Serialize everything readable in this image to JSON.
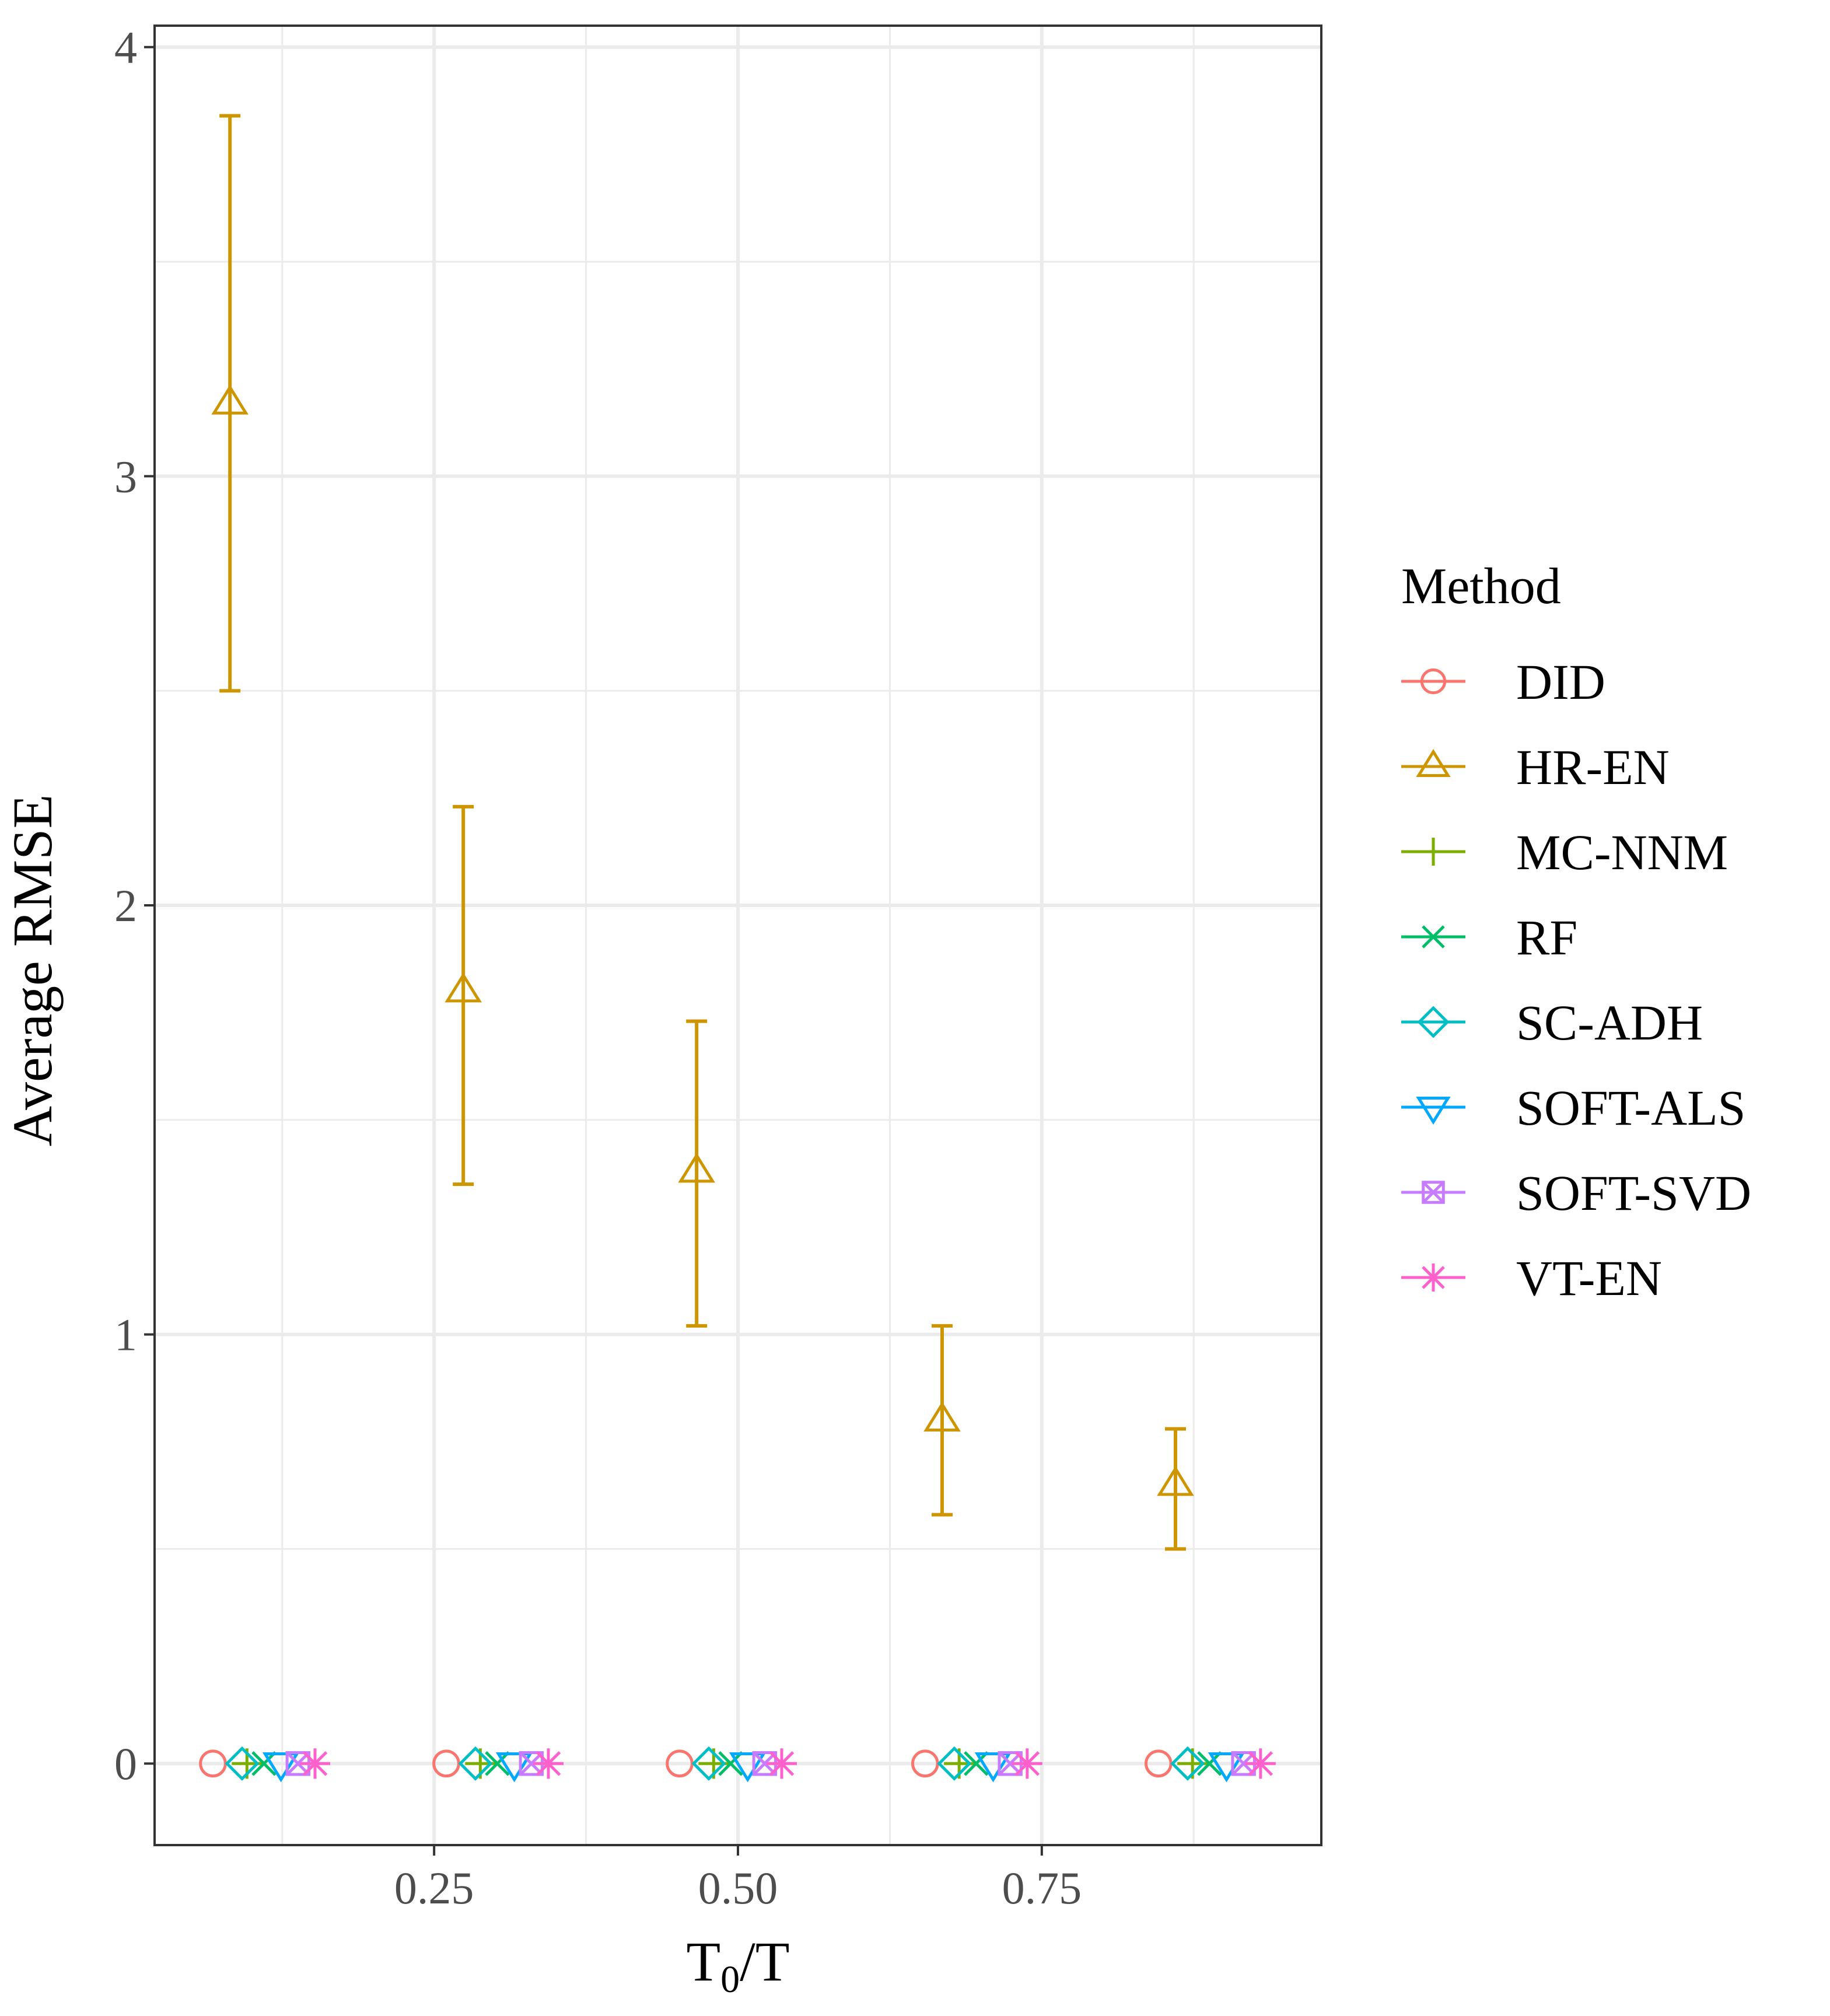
{
  "chart_data": {
    "type": "scatter",
    "title": "",
    "xlabel": "T0/T",
    "xlabel_main": "T",
    "xlabel_sub": "0",
    "xlabel_rest": "/T",
    "ylabel": "Average RMSE",
    "xlim": [
      0.02,
      0.98
    ],
    "ylim": [
      -0.19,
      4.05
    ],
    "x_ticks": [
      0.25,
      0.5,
      0.75
    ],
    "x_tick_labels": [
      "0.25",
      "0.50",
      "0.75"
    ],
    "y_ticks": [
      0,
      1,
      2,
      3,
      4
    ],
    "y_tick_labels": [
      "0",
      "1",
      "2",
      "3",
      "4"
    ],
    "grid": true,
    "legend_position": "right",
    "legend_title": "Method",
    "series": [
      {
        "name": "DID",
        "color": "#F8766D",
        "marker": "circle",
        "points": [
          {
            "x": 0.068,
            "y": 0
          },
          {
            "x": 0.26,
            "y": 0
          },
          {
            "x": 0.452,
            "y": 0
          },
          {
            "x": 0.654,
            "y": 0
          },
          {
            "x": 0.846,
            "y": 0
          }
        ]
      },
      {
        "name": "HR-EN",
        "color": "#CD9600",
        "marker": "triangle",
        "points": [
          {
            "x": 0.082,
            "y": 3.17,
            "ymin": 2.5,
            "ymax": 3.84
          },
          {
            "x": 0.274,
            "y": 1.8,
            "ymin": 1.35,
            "ymax": 2.23
          },
          {
            "x": 0.466,
            "y": 1.38,
            "ymin": 1.02,
            "ymax": 1.73
          },
          {
            "x": 0.668,
            "y": 0.8,
            "ymin": 0.58,
            "ymax": 1.02
          },
          {
            "x": 0.86,
            "y": 0.65,
            "ymin": 0.5,
            "ymax": 0.78
          }
        ]
      },
      {
        "name": "MC-NNM",
        "color": "#7CAE00",
        "marker": "plus",
        "points": [
          {
            "x": 0.096,
            "y": 0
          },
          {
            "x": 0.288,
            "y": 0
          },
          {
            "x": 0.48,
            "y": 0
          },
          {
            "x": 0.682,
            "y": 0
          },
          {
            "x": 0.874,
            "y": 0
          }
        ]
      },
      {
        "name": "RF",
        "color": "#00BE67",
        "marker": "cross",
        "points": [
          {
            "x": 0.11,
            "y": 0
          },
          {
            "x": 0.302,
            "y": 0
          },
          {
            "x": 0.494,
            "y": 0
          },
          {
            "x": 0.696,
            "y": 0
          },
          {
            "x": 0.888,
            "y": 0
          }
        ]
      },
      {
        "name": "SC-ADH",
        "color": "#00BFC4",
        "marker": "diamond",
        "points": [
          {
            "x": 0.092,
            "y": 0
          },
          {
            "x": 0.284,
            "y": 0
          },
          {
            "x": 0.476,
            "y": 0
          },
          {
            "x": 0.678,
            "y": 0
          },
          {
            "x": 0.87,
            "y": 0
          }
        ]
      },
      {
        "name": "SOFT-ALS",
        "color": "#00A9FF",
        "marker": "triangle-down",
        "points": [
          {
            "x": 0.124,
            "y": 0
          },
          {
            "x": 0.316,
            "y": 0
          },
          {
            "x": 0.508,
            "y": 0
          },
          {
            "x": 0.71,
            "y": 0
          },
          {
            "x": 0.902,
            "y": 0
          }
        ]
      },
      {
        "name": "SOFT-SVD",
        "color": "#C77CFF",
        "marker": "square-cross",
        "points": [
          {
            "x": 0.138,
            "y": 0
          },
          {
            "x": 0.33,
            "y": 0
          },
          {
            "x": 0.522,
            "y": 0
          },
          {
            "x": 0.724,
            "y": 0
          },
          {
            "x": 0.916,
            "y": 0
          }
        ]
      },
      {
        "name": "VT-EN",
        "color": "#FF61CC",
        "marker": "asterisk",
        "points": [
          {
            "x": 0.152,
            "y": 0
          },
          {
            "x": 0.344,
            "y": 0
          },
          {
            "x": 0.536,
            "y": 0
          },
          {
            "x": 0.738,
            "y": 0
          },
          {
            "x": 0.93,
            "y": 0
          }
        ]
      }
    ]
  }
}
